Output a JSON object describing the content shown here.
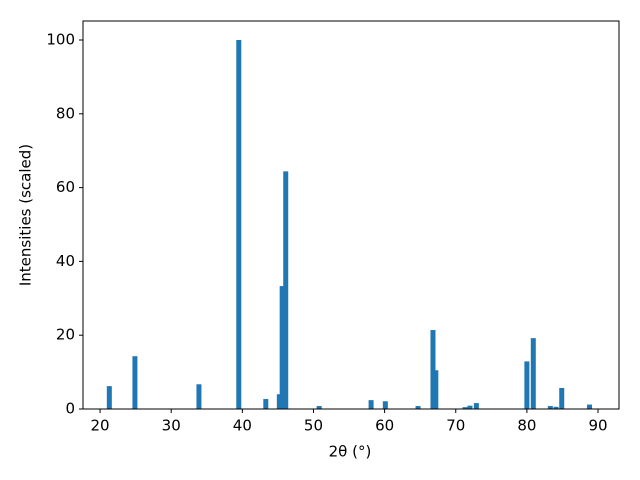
{
  "chart_data": {
    "type": "bar",
    "x_label": "2θ (°)",
    "y_label": "Intensities (scaled)",
    "color": "#1f77b4",
    "x": [
      21.3,
      24.9,
      33.9,
      39.5,
      43.3,
      45.2,
      45.6,
      46.1,
      50.8,
      58.1,
      60.1,
      64.7,
      66.8,
      67.2,
      71.3,
      72.0,
      72.9,
      80.0,
      80.9,
      83.3,
      84.1,
      84.9,
      88.8
    ],
    "values": [
      6.2,
      14.3,
      6.7,
      100,
      2.7,
      4,
      33.3,
      64.4,
      0.8,
      2.4,
      2.1,
      0.8,
      21.4,
      10.5,
      0.5,
      0.9,
      1.6,
      12.9,
      19.2,
      0.8,
      0.6,
      5.7,
      1.2
    ],
    "xlim": [
      17.6,
      92.95
    ],
    "xticks": [
      20,
      30,
      40,
      50,
      60,
      70,
      80,
      90
    ],
    "ylim": [
      0,
      105.15
    ],
    "yticks": [
      0,
      20,
      40,
      60,
      80,
      100
    ]
  }
}
